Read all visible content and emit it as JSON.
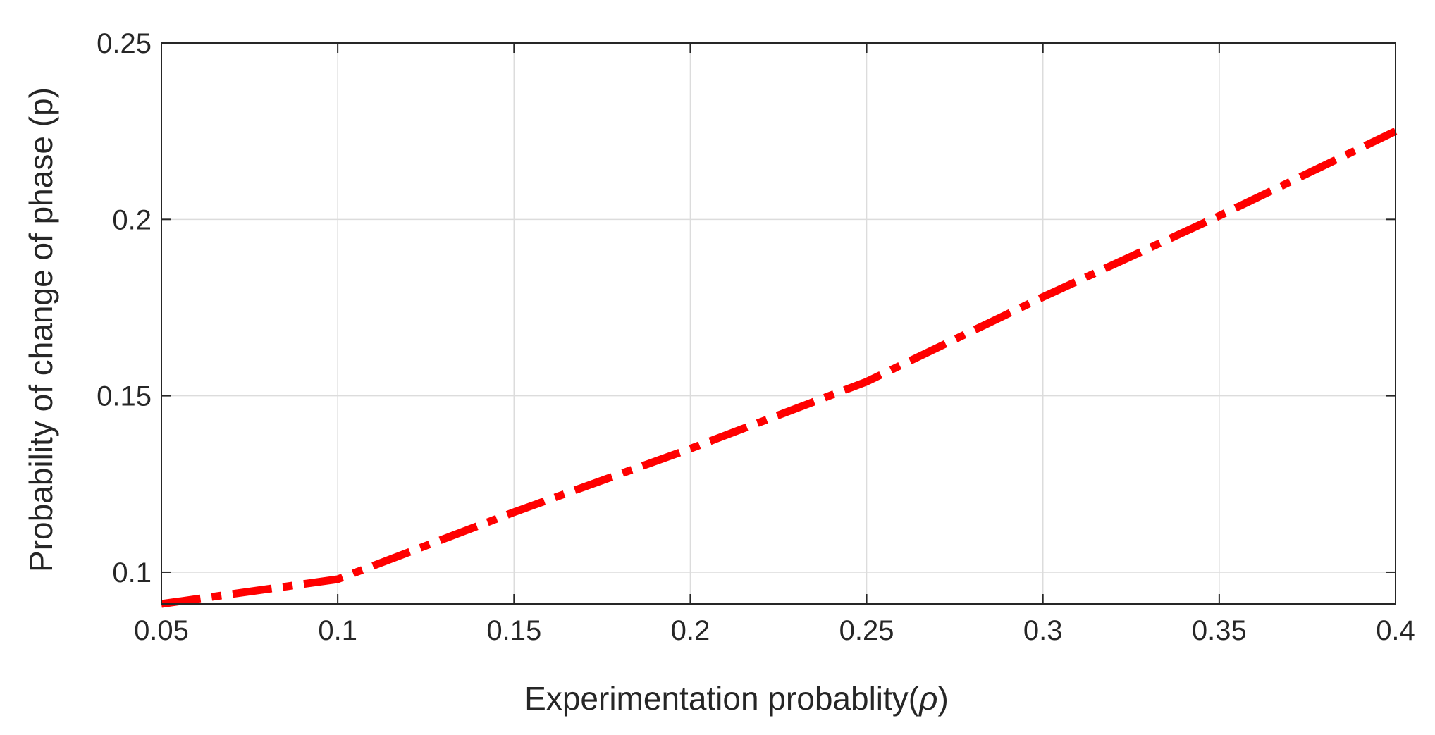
{
  "chart_data": {
    "type": "line",
    "title": "",
    "xlabel_prefix": "Experimentation probablity(",
    "xlabel_symbol": "ρ",
    "xlabel_suffix": ")",
    "ylabel": "Probability of change of phase (p)",
    "xlim": [
      0.05,
      0.4
    ],
    "ylim": [
      0.091,
      0.25
    ],
    "xticks": [
      0.05,
      0.1,
      0.15,
      0.2,
      0.25,
      0.3,
      0.35,
      0.4
    ],
    "xtick_labels": [
      "0.05",
      "0.1",
      "0.15",
      "0.2",
      "0.25",
      "0.3",
      "0.35",
      "0.4"
    ],
    "yticks": [
      0.1,
      0.15,
      0.2,
      0.25
    ],
    "ytick_labels": [
      "0.1",
      "0.15",
      "0.2",
      "0.25"
    ],
    "grid": true,
    "series": [
      {
        "color": "#ff0000",
        "line_style": "dash-dot",
        "x": [
          0.05,
          0.1,
          0.15,
          0.2,
          0.25,
          0.3,
          0.35,
          0.4
        ],
        "y": [
          0.091,
          0.098,
          0.117,
          0.135,
          0.154,
          0.178,
          0.201,
          0.225
        ]
      }
    ]
  }
}
